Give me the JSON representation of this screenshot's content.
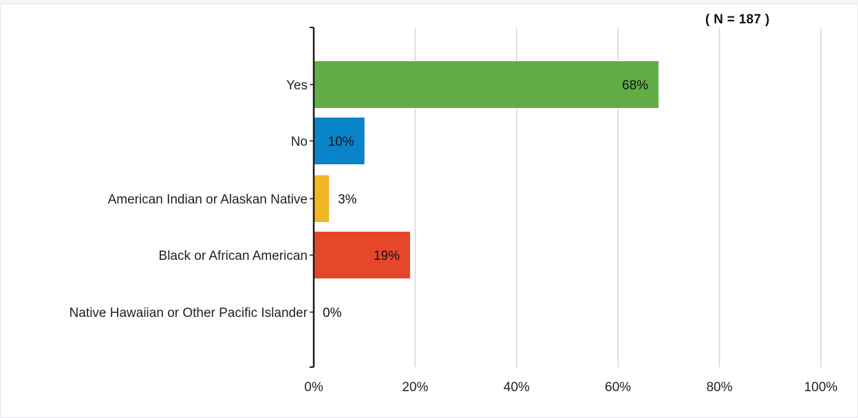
{
  "sample_size_label": "( N = 187 )",
  "chart_data": {
    "type": "bar",
    "orientation": "horizontal",
    "categories": [
      "Yes",
      "No",
      "American Indian or Alaskan Native",
      "Black or African American",
      "Native Hawaiian or Other Pacific Islander"
    ],
    "values": [
      68,
      10,
      3,
      19,
      0
    ],
    "value_labels": [
      "68%",
      "10%",
      "3%",
      "19%",
      "0%"
    ],
    "colors": [
      "#62ad46",
      "#0a84c8",
      "#f1b724",
      "#e6472a",
      "#999999"
    ],
    "x_ticks": [
      "0%",
      "20%",
      "40%",
      "60%",
      "80%",
      "100%"
    ],
    "xlim": [
      0,
      100
    ],
    "grid": "vertical",
    "legend": "none",
    "title": "",
    "xlabel": "",
    "ylabel": ""
  }
}
